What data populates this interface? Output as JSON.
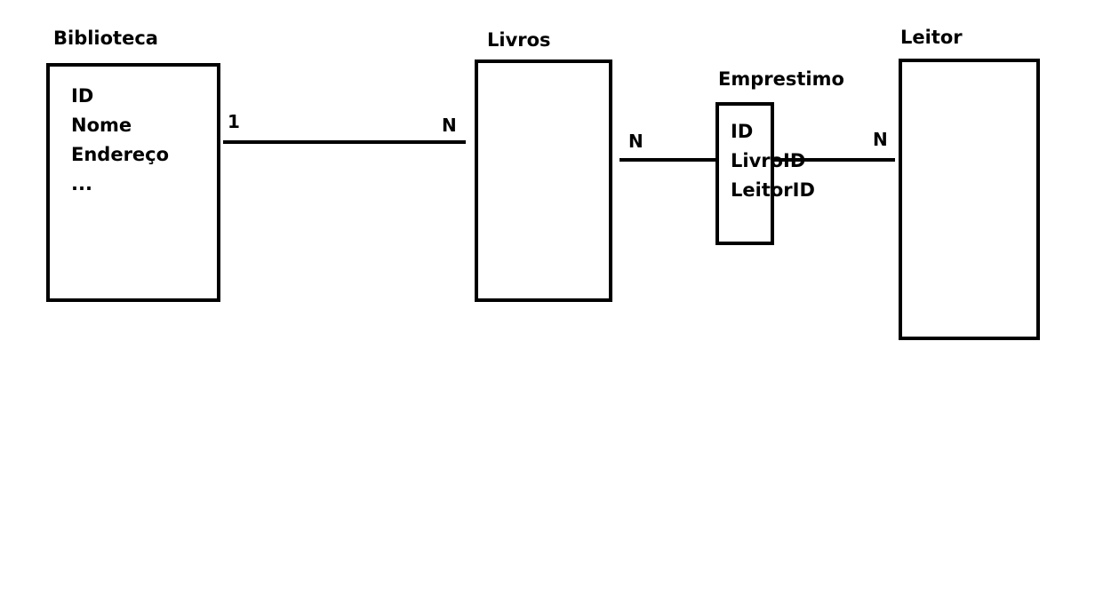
{
  "entities": {
    "biblioteca": {
      "title": "Biblioteca",
      "attributes": [
        "ID",
        "Nome",
        "Endereço",
        "..."
      ]
    },
    "livros": {
      "title": "Livros"
    },
    "emprestimo": {
      "title": "Emprestimo",
      "attributes": [
        "ID",
        "LivroID",
        "LeitorID"
      ]
    },
    "leitor": {
      "title": "Leitor"
    }
  },
  "relationships": [
    {
      "from": "Biblioteca",
      "to": "Livros",
      "from_card": "1",
      "to_card": "N"
    },
    {
      "from": "Livros",
      "to": "Emprestimo",
      "from_card": "N"
    },
    {
      "from": "Emprestimo",
      "to": "Leitor",
      "to_card": "N"
    }
  ]
}
